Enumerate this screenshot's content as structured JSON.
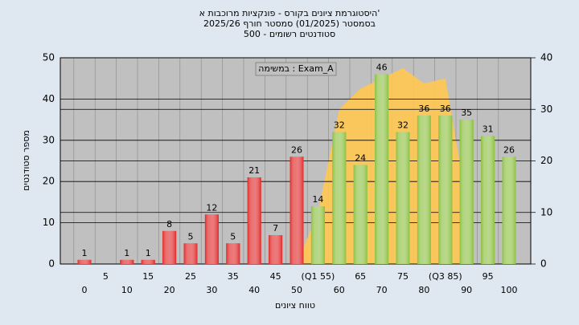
{
  "chart_data": {
    "type": "bar",
    "title": [
      "היסטוגרמת ציונים בקורס - פונקציות מרוכבות א'",
      "בסמסטר (01/2025) סמסטר חורף 2025/26",
      "500 - סטודנטים רשומים"
    ],
    "x_label": "טווח ציונים",
    "y_label": "מספר סטודנטים",
    "categories": [
      "0",
      "5",
      "10",
      "15",
      "20",
      "25",
      "30",
      "35",
      "40",
      "45",
      "50",
      "(Q1 55)",
      "60",
      "65",
      "70",
      "75",
      "80",
      "(Q3 85)",
      "90",
      "95",
      "100"
    ],
    "values": [
      1,
      0,
      1,
      1,
      8,
      5,
      12,
      5,
      21,
      7,
      26,
      14,
      32,
      24,
      46,
      32,
      36,
      36,
      35,
      31,
      26
    ],
    "colors": [
      "#e02828",
      "#e02828",
      "#e02828",
      "#e02828",
      "#e02828",
      "#e02828",
      "#e02828",
      "#e02828",
      "#e02828",
      "#e02828",
      "#e02828",
      "#8cc040",
      "#8cc040",
      "#8cc040",
      "#8cc040",
      "#8cc040",
      "#8cc040",
      "#8cc040",
      "#8cc040",
      "#8cc040",
      "#8cc040"
    ],
    "series": [
      {
        "name": "במשימה : Exam_A",
        "color": "#ffc850",
        "type": "area",
        "axis": "y2",
        "values": [
          null,
          null,
          null,
          null,
          null,
          null,
          null,
          null,
          null,
          null,
          0,
          10,
          30,
          34,
          36,
          38,
          35,
          36,
          12,
          null,
          null
        ]
      }
    ],
    "ylim": [
      0,
      50
    ],
    "yticks": [
      0,
      10,
      20,
      30,
      40,
      50
    ],
    "y2lim": [
      0,
      40
    ],
    "y2ticks": [
      0,
      10,
      20,
      30,
      40
    ],
    "grid": true
  }
}
